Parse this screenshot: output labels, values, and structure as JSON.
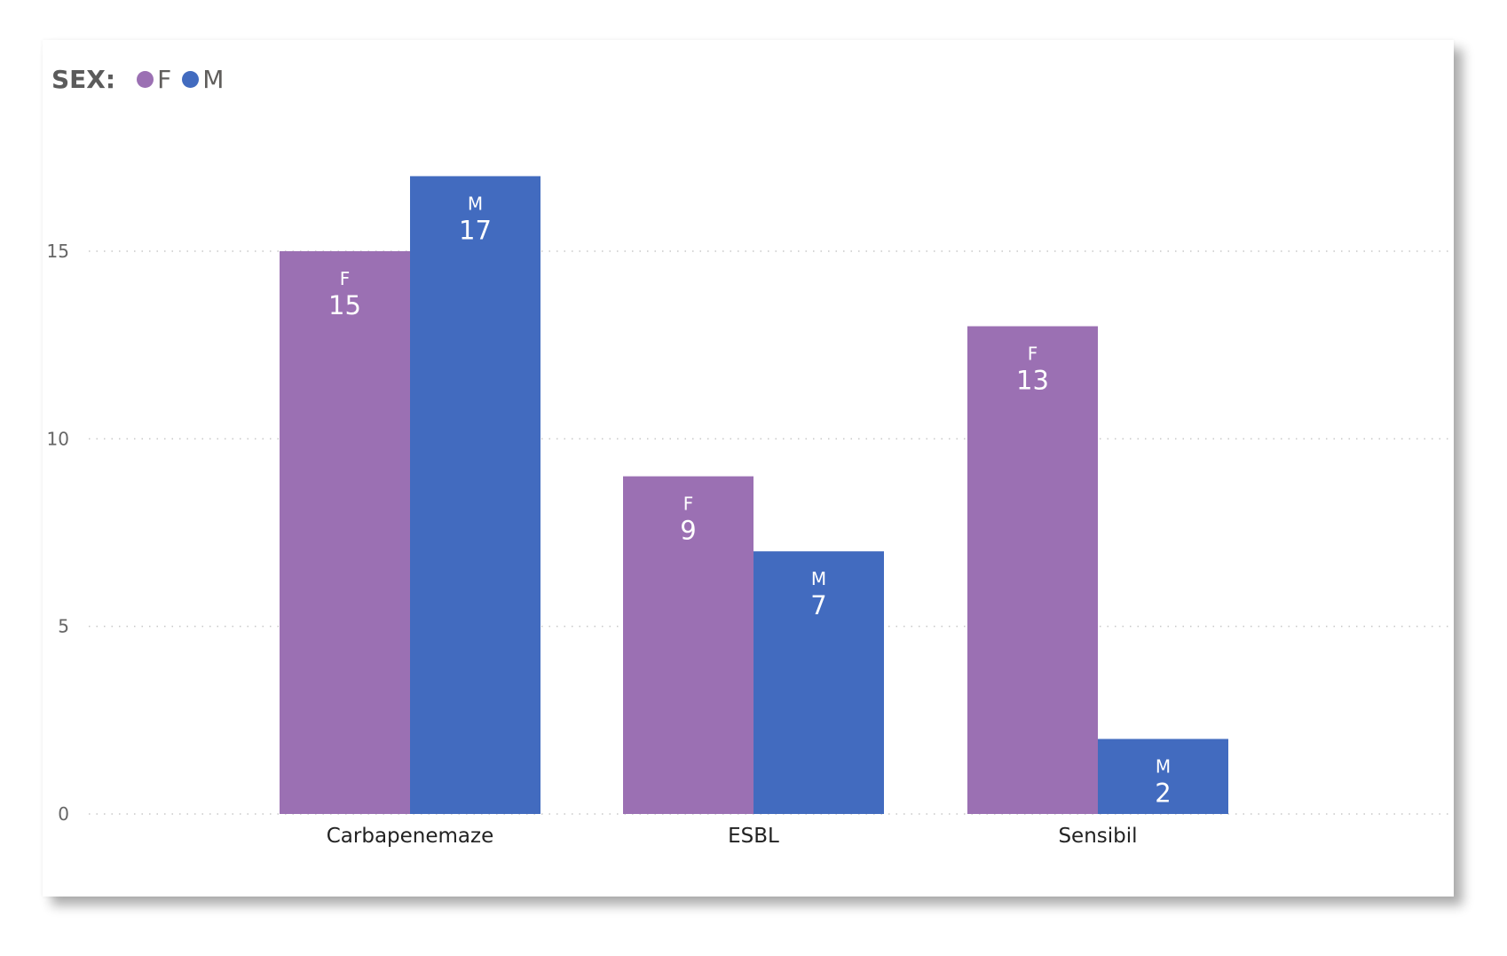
{
  "legend": {
    "title": "SEX:",
    "items": [
      {
        "label": "F",
        "color": "#9b70b3"
      },
      {
        "label": "M",
        "color": "#426bbf"
      }
    ]
  },
  "chart_data": {
    "type": "bar",
    "categories": [
      "Carbapenemaze",
      "ESBL",
      "Sensibil"
    ],
    "series": [
      {
        "name": "F",
        "color": "#9b70b3",
        "values": [
          15,
          9,
          13
        ]
      },
      {
        "name": "M",
        "color": "#426bbf",
        "values": [
          17,
          7,
          2
        ]
      }
    ],
    "yticks": [
      0,
      5,
      10,
      15
    ],
    "ylim": [
      0,
      17
    ],
    "grid": true,
    "legend_position": "top-left",
    "data_labels": true
  }
}
